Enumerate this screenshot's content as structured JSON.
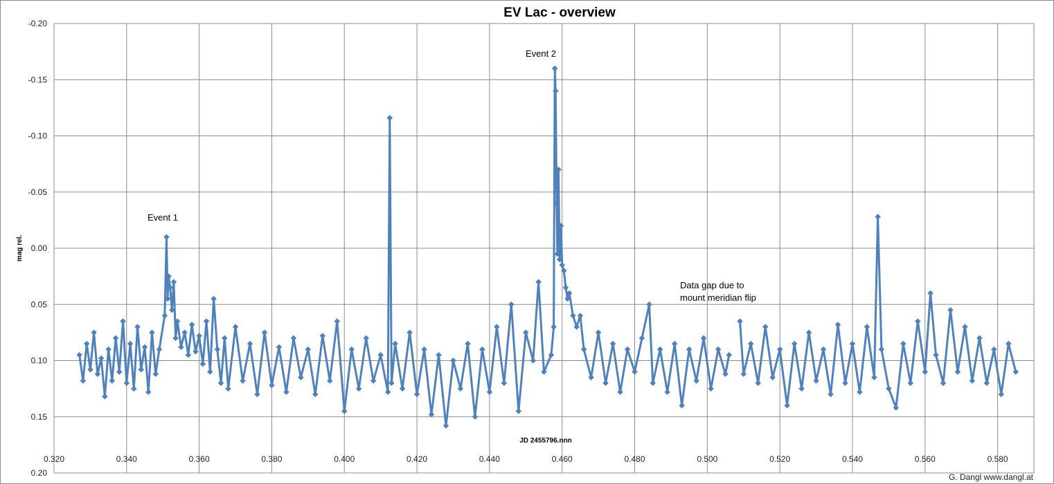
{
  "chart_data": {
    "type": "line",
    "title": "EV Lac - overview",
    "xlabel": "JD 2455796.nnn",
    "ylabel": "mag rel.",
    "xlim": [
      0.32,
      0.59
    ],
    "ylim": [
      0.2,
      -0.2
    ],
    "y_inverted": true,
    "grid": true,
    "legend": "none",
    "x_ticks": [
      "0.320",
      "0.340",
      "0.360",
      "0.380",
      "0.400",
      "0.420",
      "0.440",
      "0.460",
      "0.480",
      "0.500",
      "0.520",
      "0.540",
      "0.560",
      "0.580"
    ],
    "y_ticks": [
      "-0.20",
      "-0.15",
      "-0.10",
      "-0.05",
      "0.00",
      "0.05",
      "0.10",
      "0.15",
      "0.20"
    ],
    "series": [
      {
        "color": "#4f81bd",
        "marker": "diamond",
        "points": [
          [
            0.327,
            0.095
          ],
          [
            0.328,
            0.118
          ],
          [
            0.329,
            0.085
          ],
          [
            0.33,
            0.108
          ],
          [
            0.331,
            0.075
          ],
          [
            0.332,
            0.112
          ],
          [
            0.333,
            0.098
          ],
          [
            0.334,
            0.132
          ],
          [
            0.335,
            0.09
          ],
          [
            0.336,
            0.118
          ],
          [
            0.337,
            0.08
          ],
          [
            0.338,
            0.11
          ],
          [
            0.339,
            0.065
          ],
          [
            0.34,
            0.12
          ],
          [
            0.341,
            0.085
          ],
          [
            0.342,
            0.125
          ],
          [
            0.343,
            0.07
          ],
          [
            0.344,
            0.108
          ],
          [
            0.345,
            0.088
          ],
          [
            0.346,
            0.128
          ],
          [
            0.347,
            0.075
          ],
          [
            0.348,
            0.112
          ],
          [
            0.349,
            0.09
          ],
          [
            0.3505,
            0.06
          ],
          [
            0.351,
            -0.01
          ],
          [
            0.3513,
            0.045
          ],
          [
            0.3516,
            0.025
          ],
          [
            0.352,
            0.035
          ],
          [
            0.3525,
            0.055
          ],
          [
            0.353,
            0.03
          ],
          [
            0.3535,
            0.08
          ],
          [
            0.354,
            0.065
          ],
          [
            0.355,
            0.088
          ],
          [
            0.356,
            0.075
          ],
          [
            0.357,
            0.095
          ],
          [
            0.358,
            0.068
          ],
          [
            0.359,
            0.092
          ],
          [
            0.36,
            0.078
          ],
          [
            0.361,
            0.103
          ],
          [
            0.362,
            0.065
          ],
          [
            0.363,
            0.11
          ],
          [
            0.364,
            0.045
          ],
          [
            0.365,
            0.09
          ],
          [
            0.366,
            0.12
          ],
          [
            0.367,
            0.08
          ],
          [
            0.368,
            0.125
          ],
          [
            0.37,
            0.07
          ],
          [
            0.372,
            0.118
          ],
          [
            0.374,
            0.085
          ],
          [
            0.376,
            0.13
          ],
          [
            0.378,
            0.075
          ],
          [
            0.38,
            0.122
          ],
          [
            0.382,
            0.088
          ],
          [
            0.384,
            0.128
          ],
          [
            0.386,
            0.08
          ],
          [
            0.388,
            0.115
          ],
          [
            0.39,
            0.09
          ],
          [
            0.392,
            0.13
          ],
          [
            0.394,
            0.078
          ],
          [
            0.396,
            0.118
          ],
          [
            0.398,
            0.065
          ],
          [
            0.4,
            0.145
          ],
          [
            0.402,
            0.09
          ],
          [
            0.404,
            0.125
          ],
          [
            0.406,
            0.08
          ],
          [
            0.408,
            0.118
          ],
          [
            0.41,
            0.095
          ],
          [
            0.412,
            0.128
          ],
          [
            0.4125,
            -0.116
          ],
          [
            0.413,
            0.12
          ],
          [
            0.414,
            0.085
          ],
          [
            0.416,
            0.125
          ],
          [
            0.418,
            0.075
          ],
          [
            0.42,
            0.13
          ],
          [
            0.422,
            0.09
          ],
          [
            0.424,
            0.148
          ],
          [
            0.426,
            0.095
          ],
          [
            0.428,
            0.158
          ],
          [
            0.43,
            0.1
          ],
          [
            0.432,
            0.125
          ],
          [
            0.434,
            0.085
          ],
          [
            0.436,
            0.15
          ],
          [
            0.438,
            0.09
          ],
          [
            0.44,
            0.128
          ],
          [
            0.442,
            0.07
          ],
          [
            0.444,
            0.12
          ],
          [
            0.446,
            0.05
          ],
          [
            0.448,
            0.145
          ],
          [
            0.45,
            0.075
          ],
          [
            0.452,
            0.1
          ],
          [
            0.4535,
            0.03
          ],
          [
            0.455,
            0.11
          ],
          [
            0.457,
            0.095
          ],
          [
            0.4577,
            0.07
          ],
          [
            0.458,
            -0.16
          ],
          [
            0.4582,
            -0.14
          ],
          [
            0.4585,
            -0.04
          ],
          [
            0.4587,
            0.005
          ],
          [
            0.459,
            -0.07
          ],
          [
            0.4593,
            0.01
          ],
          [
            0.4597,
            -0.02
          ],
          [
            0.46,
            0.015
          ],
          [
            0.4605,
            0.02
          ],
          [
            0.461,
            0.035
          ],
          [
            0.4615,
            0.045
          ],
          [
            0.462,
            0.04
          ],
          [
            0.463,
            0.06
          ],
          [
            0.464,
            0.07
          ],
          [
            0.465,
            0.06
          ],
          [
            0.466,
            0.09
          ],
          [
            0.468,
            0.115
          ],
          [
            0.47,
            0.075
          ],
          [
            0.472,
            0.12
          ],
          [
            0.474,
            0.085
          ],
          [
            0.476,
            0.128
          ],
          [
            0.478,
            0.09
          ],
          [
            0.48,
            0.11
          ],
          [
            0.482,
            0.08
          ],
          [
            0.484,
            0.05
          ],
          [
            0.485,
            0.12
          ],
          [
            0.487,
            0.09
          ],
          [
            0.489,
            0.128
          ],
          [
            0.491,
            0.085
          ],
          [
            0.493,
            0.14
          ],
          [
            0.495,
            0.09
          ],
          [
            0.497,
            0.118
          ],
          [
            0.499,
            0.08
          ],
          [
            0.501,
            0.125
          ],
          [
            0.503,
            0.09
          ],
          [
            0.505,
            0.112
          ],
          [
            0.506,
            0.095
          ],
          [
            0.509,
            0.065
          ],
          [
            0.51,
            0.112
          ],
          [
            0.512,
            0.085
          ],
          [
            0.514,
            0.12
          ],
          [
            0.516,
            0.07
          ],
          [
            0.518,
            0.115
          ],
          [
            0.52,
            0.09
          ],
          [
            0.522,
            0.14
          ],
          [
            0.524,
            0.085
          ],
          [
            0.526,
            0.125
          ],
          [
            0.528,
            0.075
          ],
          [
            0.53,
            0.118
          ],
          [
            0.532,
            0.09
          ],
          [
            0.534,
            0.13
          ],
          [
            0.536,
            0.068
          ],
          [
            0.538,
            0.12
          ],
          [
            0.54,
            0.085
          ],
          [
            0.542,
            0.128
          ],
          [
            0.544,
            0.07
          ],
          [
            0.546,
            0.115
          ],
          [
            0.547,
            -0.028
          ],
          [
            0.548,
            0.09
          ],
          [
            0.55,
            0.125
          ],
          [
            0.552,
            0.142
          ],
          [
            0.554,
            0.085
          ],
          [
            0.556,
            0.12
          ],
          [
            0.558,
            0.065
          ],
          [
            0.56,
            0.11
          ],
          [
            0.5615,
            0.04
          ],
          [
            0.563,
            0.095
          ],
          [
            0.565,
            0.12
          ],
          [
            0.567,
            0.055
          ],
          [
            0.569,
            0.11
          ],
          [
            0.571,
            0.07
          ],
          [
            0.573,
            0.118
          ],
          [
            0.575,
            0.08
          ],
          [
            0.577,
            0.12
          ],
          [
            0.579,
            0.09
          ],
          [
            0.581,
            0.13
          ],
          [
            0.583,
            0.085
          ],
          [
            0.585,
            0.11
          ]
        ]
      }
    ],
    "annotations": {
      "event1": "Event 1",
      "event2": "Event 2",
      "gap_line1": "Data gap due  to",
      "gap_line2": "mount meridian flip"
    },
    "credit": "G. Dangl   www.dangl.at"
  }
}
